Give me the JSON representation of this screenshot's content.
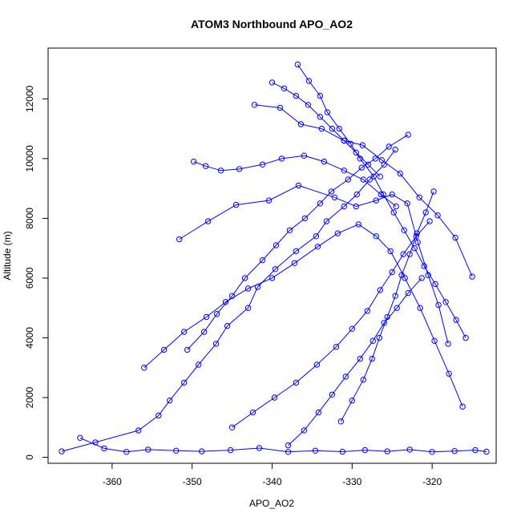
{
  "chart_data": {
    "type": "scatter",
    "title": "ATOM3 Northbound APO_AO2",
    "xlabel": "APO_AO2",
    "ylabel": "Altitude (m)",
    "xlim": [
      -368,
      -312
    ],
    "ylim": [
      -200,
      13700
    ],
    "x_ticks": [
      -360,
      -350,
      -340,
      -330,
      -320
    ],
    "y_ticks": [
      0,
      2000,
      4000,
      6000,
      8000,
      10000,
      12000
    ],
    "grid": false,
    "legend": "none",
    "marker": "open-circle",
    "connected": true,
    "color": "#0000ff",
    "series": [
      {
        "x": [
          -366.3,
          -362.1,
          -356.7,
          -354.2,
          -352.8,
          -351.0,
          -349.2,
          -347.0,
          -345.6,
          -343.0,
          -341.8,
          -339.6,
          -337.0,
          -334.5,
          -333.2,
          -331.0,
          -329.4,
          -327.8,
          -326.0,
          -324.6
        ],
        "y": [
          200,
          500,
          900,
          1400,
          1900,
          2500,
          3100,
          3800,
          4400,
          5000,
          5700,
          6300,
          6900,
          7400,
          7900,
          8400,
          8800,
          9300,
          9800,
          10300
        ]
      },
      {
        "x": [
          -323.0,
          -325.4,
          -327.1,
          -328.8,
          -330.5,
          -332.6,
          -334.0,
          -335.9,
          -337.8,
          -339.5,
          -341.2,
          -343.4,
          -345.0,
          -346.9,
          -348.5,
          -350.6
        ],
        "y": [
          10800,
          10400,
          10000,
          9700,
          9300,
          8900,
          8500,
          8000,
          7600,
          7100,
          6600,
          6000,
          5400,
          4800,
          4200,
          3600
        ]
      },
      {
        "x": [
          -336.8,
          -335.4,
          -334.0,
          -333.1,
          -331.6,
          -330.2,
          -329.0,
          -327.3,
          -326.1,
          -324.8,
          -323.5,
          -322.2,
          -321.0,
          -319.6,
          -318.3,
          -317.0,
          -315.8
        ],
        "y": [
          13150,
          12600,
          12100,
          11550,
          11000,
          10500,
          10000,
          9400,
          8800,
          8200,
          7600,
          7000,
          6400,
          5800,
          5200,
          4600,
          4000
        ]
      },
      {
        "x": [
          -364.0,
          -361.0,
          -358.2,
          -355.5,
          -352.0,
          -348.8,
          -345.2,
          -341.6,
          -338.0,
          -334.6,
          -331.2,
          -328.4,
          -325.6,
          -322.8,
          -320.0,
          -317.2,
          -314.6,
          -313.2
        ],
        "y": [
          650,
          300,
          180,
          260,
          220,
          200,
          240,
          310,
          180,
          220,
          190,
          240,
          200,
          260,
          180,
          210,
          240,
          190
        ]
      },
      {
        "x": [
          -342.2,
          -339.0,
          -336.4,
          -333.8,
          -331.0,
          -328.7,
          -326.3,
          -324.0,
          -321.6,
          -319.3,
          -317.1,
          -315.0
        ],
        "y": [
          11800,
          11700,
          11150,
          11000,
          10600,
          10450,
          9950,
          9500,
          8700,
          8100,
          7350,
          6050
        ]
      },
      {
        "x": [
          -351.6,
          -348.0,
          -344.5,
          -340.4,
          -336.7,
          -332.2,
          -329.5,
          -327.0,
          -325.0,
          -323.1,
          -321.8,
          -320.5,
          -319.2,
          -318.0
        ],
        "y": [
          7300,
          7900,
          8450,
          8600,
          9100,
          8700,
          8400,
          8600,
          8800,
          8500,
          7200,
          6100,
          5100,
          3800
        ]
      },
      {
        "x": [
          -356.0,
          -353.5,
          -351.0,
          -348.2,
          -345.8,
          -343.0,
          -340.0,
          -337.2,
          -334.3,
          -331.8,
          -329.2,
          -327.0,
          -325.2,
          -323.4,
          -321.5,
          -319.7,
          -317.9,
          -316.2
        ],
        "y": [
          3000,
          3600,
          4200,
          4700,
          5200,
          5650,
          6000,
          6500,
          7050,
          7500,
          7800,
          7400,
          6900,
          6000,
          5000,
          3900,
          2800,
          1700
        ]
      },
      {
        "x": [
          -345.0,
          -342.4,
          -339.7,
          -337.0,
          -334.4,
          -332.0,
          -330.0,
          -328.1,
          -326.5,
          -325.0,
          -323.6,
          -322.0,
          -320.3
        ],
        "y": [
          1000,
          1500,
          2000,
          2500,
          3100,
          3700,
          4300,
          4900,
          5600,
          6200,
          6800,
          7400,
          7900
        ]
      },
      {
        "x": [
          -338.0,
          -336.0,
          -334.2,
          -332.5,
          -330.8,
          -329.0,
          -327.4,
          -326.0,
          -324.4,
          -323.0,
          -321.3
        ],
        "y": [
          400,
          900,
          1500,
          2100,
          2700,
          3300,
          3900,
          4500,
          5000,
          5500,
          6000
        ]
      },
      {
        "x": [
          -331.4,
          -330.0,
          -328.6,
          -327.5,
          -326.6,
          -325.6,
          -324.6,
          -323.8,
          -322.8,
          -321.9,
          -320.8,
          -319.8
        ],
        "y": [
          1200,
          1900,
          2600,
          3300,
          4000,
          4700,
          5400,
          6100,
          6800,
          7500,
          8200,
          8900
        ]
      },
      {
        "x": [
          -349.8,
          -348.3,
          -346.4,
          -344.1,
          -341.2,
          -338.8,
          -336.0,
          -333.5,
          -331.0,
          -328.6,
          -326.4,
          -324.5
        ],
        "y": [
          9900,
          9750,
          9600,
          9650,
          9800,
          10000,
          10100,
          9900,
          9600,
          9300,
          8800,
          8400
        ]
      },
      {
        "x": [
          -340.0,
          -338.5,
          -337.0,
          -335.5,
          -334.0,
          -332.5,
          -331.0,
          -329.5,
          -328.0,
          -326.5
        ],
        "y": [
          12550,
          12350,
          12100,
          11800,
          11400,
          11000,
          10600,
          10200,
          9800,
          9400
        ]
      }
    ]
  }
}
